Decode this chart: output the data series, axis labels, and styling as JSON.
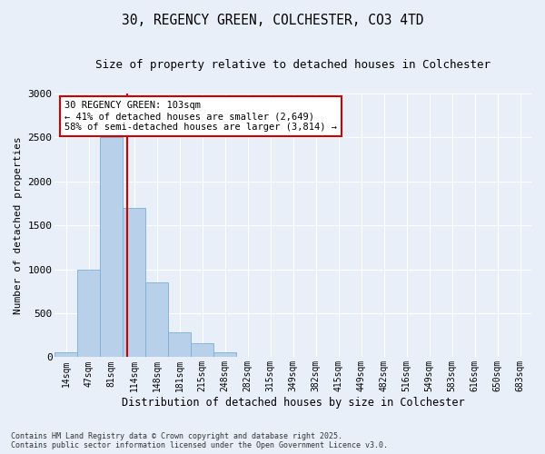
{
  "title_line1": "30, REGENCY GREEN, COLCHESTER, CO3 4TD",
  "title_line2": "Size of property relative to detached houses in Colchester",
  "xlabel": "Distribution of detached houses by size in Colchester",
  "ylabel": "Number of detached properties",
  "categories": [
    "14sqm",
    "47sqm",
    "81sqm",
    "114sqm",
    "148sqm",
    "181sqm",
    "215sqm",
    "248sqm",
    "282sqm",
    "315sqm",
    "349sqm",
    "382sqm",
    "415sqm",
    "449sqm",
    "482sqm",
    "516sqm",
    "549sqm",
    "583sqm",
    "616sqm",
    "650sqm",
    "683sqm"
  ],
  "values": [
    55,
    1000,
    2500,
    1700,
    850,
    280,
    155,
    55,
    0,
    0,
    0,
    0,
    0,
    0,
    0,
    0,
    0,
    0,
    0,
    0,
    0
  ],
  "bar_color": "#b8d0ea",
  "bar_edge_color": "#7aafd4",
  "background_color": "#e8eff8",
  "grid_color": "#ffffff",
  "annotation_text": "30 REGENCY GREEN: 103sqm\n← 41% of detached houses are smaller (2,649)\n58% of semi-detached houses are larger (3,814) →",
  "annotation_box_color": "#ffffff",
  "annotation_box_edge": "#cc0000",
  "vline_color": "#cc0000",
  "footer_line1": "Contains HM Land Registry data © Crown copyright and database right 2025.",
  "footer_line2": "Contains public sector information licensed under the Open Government Licence v3.0.",
  "ylim": [
    0,
    3000
  ],
  "yticks": [
    0,
    500,
    1000,
    1500,
    2000,
    2500,
    3000
  ],
  "vline_index": 2.67
}
